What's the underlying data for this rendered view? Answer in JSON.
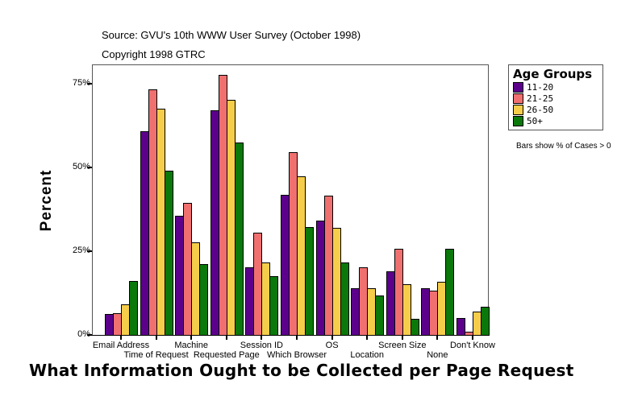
{
  "header": {
    "source": "Source: GVU's 10th WWW User Survey (October 1998)",
    "copyright": "Copyright 1998 GTRC"
  },
  "legend": {
    "title": "Age Groups",
    "items": [
      {
        "label": "11-20",
        "color": "#5c008c"
      },
      {
        "label": "21-25",
        "color": "#f07070"
      },
      {
        "label": "26-50",
        "color": "#f5cd4a"
      },
      {
        "label": "50+",
        "color": "#0a780a"
      }
    ],
    "note": "Bars show % of Cases > 0"
  },
  "chart_data": {
    "type": "bar",
    "title": "What Information Ought to be Collected per Page Request",
    "xlabel": "",
    "ylabel": "Percent",
    "ylim": [
      0,
      80
    ],
    "yticks": [
      "0%",
      "25%",
      "50%",
      "75%"
    ],
    "grid": false,
    "legend_position": "right",
    "categories": [
      "Email Address",
      "Time of Request",
      "Machine",
      "Requested Page",
      "Session ID",
      "Which Browser",
      "OS",
      "Location",
      "Screen Size",
      "None",
      "Don't Know"
    ],
    "series": [
      {
        "name": "11-20",
        "color": "#5c008c",
        "values": [
          6.2,
          60.8,
          35.6,
          67.1,
          20.2,
          41.8,
          34.1,
          13.9,
          19.0,
          13.9,
          5.0
        ]
      },
      {
        "name": "21-25",
        "color": "#f07070",
        "values": [
          6.5,
          73.3,
          39.4,
          77.6,
          30.5,
          54.6,
          41.6,
          20.2,
          25.7,
          13.2,
          1.0
        ]
      },
      {
        "name": "26-50",
        "color": "#f5cd4a",
        "values": [
          9.1,
          67.5,
          27.6,
          70.2,
          21.6,
          47.4,
          32.0,
          13.9,
          15.1,
          15.9,
          7.0
        ]
      },
      {
        "name": "50+",
        "color": "#0a780a",
        "values": [
          16.1,
          49.0,
          21.2,
          57.5,
          17.5,
          32.2,
          21.6,
          11.8,
          4.8,
          25.7,
          8.4
        ]
      }
    ]
  }
}
